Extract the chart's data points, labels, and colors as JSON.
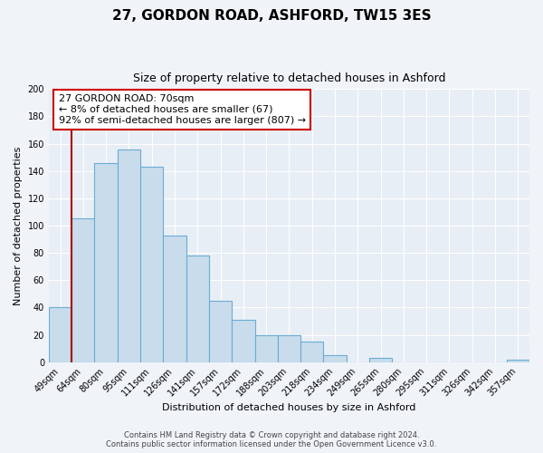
{
  "title": "27, GORDON ROAD, ASHFORD, TW15 3ES",
  "subtitle": "Size of property relative to detached houses in Ashford",
  "xlabel": "Distribution of detached houses by size in Ashford",
  "ylabel": "Number of detached properties",
  "bar_labels": [
    "49sqm",
    "64sqm",
    "80sqm",
    "95sqm",
    "111sqm",
    "126sqm",
    "141sqm",
    "157sqm",
    "172sqm",
    "188sqm",
    "203sqm",
    "218sqm",
    "234sqm",
    "249sqm",
    "265sqm",
    "280sqm",
    "295sqm",
    "311sqm",
    "326sqm",
    "342sqm",
    "357sqm"
  ],
  "bar_values": [
    40,
    105,
    146,
    156,
    143,
    93,
    78,
    45,
    31,
    20,
    20,
    15,
    5,
    0,
    3,
    0,
    0,
    0,
    0,
    0,
    2
  ],
  "bar_color": "#c8dcec",
  "bar_edge_color": "#6aadd5",
  "ymax": 200,
  "yticks": [
    0,
    20,
    40,
    60,
    80,
    100,
    120,
    140,
    160,
    180,
    200
  ],
  "annotation_box_text": "27 GORDON ROAD: 70sqm\n← 8% of detached houses are smaller (67)\n92% of semi-detached houses are larger (807) →",
  "annotation_box_edge_color": "#cc0000",
  "annotation_box_bg": "#ffffff",
  "vline_color": "#aa0000",
  "footer_line1": "Contains HM Land Registry data © Crown copyright and database right 2024.",
  "footer_line2": "Contains public sector information licensed under the Open Government Licence v3.0.",
  "bg_color": "#e8eef5",
  "fig_bg_color": "#f0f4f8",
  "grid_color": "#ffffff"
}
